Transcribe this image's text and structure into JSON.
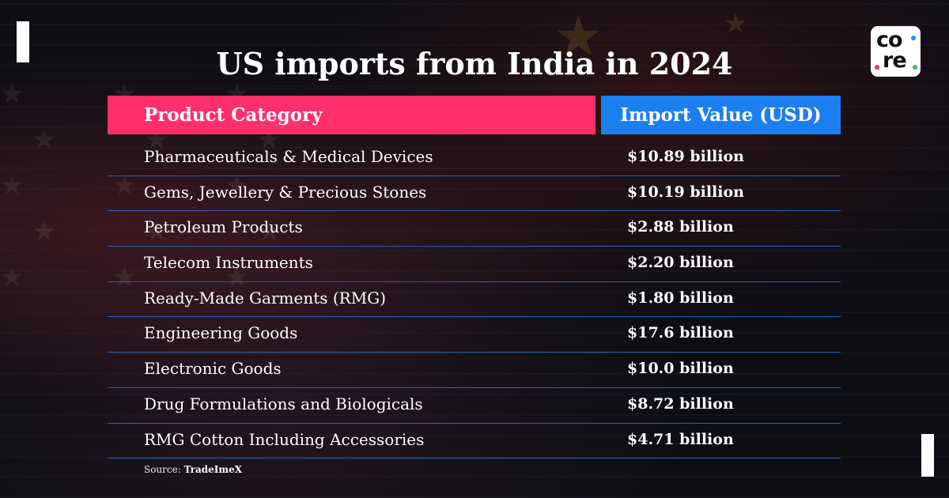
{
  "brand": {
    "logo_text_top": "co",
    "logo_text_bottom": "re"
  },
  "title": "US imports from India in 2024",
  "chart_data": {
    "type": "table",
    "title": "US imports from India in 2024",
    "columns": [
      "Product Category",
      "Import Value (USD)"
    ],
    "rows": [
      {
        "category": "Pharmaceuticals & Medical Devices",
        "value": "$10.89 billion"
      },
      {
        "category": "Gems, Jewellery & Precious Stones",
        "value": "$10.19 billion"
      },
      {
        "category": "Petroleum Products",
        "value": "$2.88 billion"
      },
      {
        "category": "Telecom Instruments",
        "value": "$2.20 billion"
      },
      {
        "category": "Ready-Made Garments (RMG)",
        "value": "$1.80 billion"
      },
      {
        "category": "Engineering Goods",
        "value": "$17.6 billion"
      },
      {
        "category": "Electronic Goods",
        "value": "$10.0 billion"
      },
      {
        "category": "Drug Formulations and Biologicals",
        "value": "$8.72 billion"
      },
      {
        "category": "RMG Cotton Including Accessories",
        "value": "$4.71 billion"
      }
    ]
  },
  "source": {
    "label": "Source:",
    "name": "TradeImeX"
  },
  "colors": {
    "header_category": "#ff2f6e",
    "header_value": "#1c7ff0",
    "row_divider": "#2f5fb0",
    "background": "#0c0e14"
  }
}
